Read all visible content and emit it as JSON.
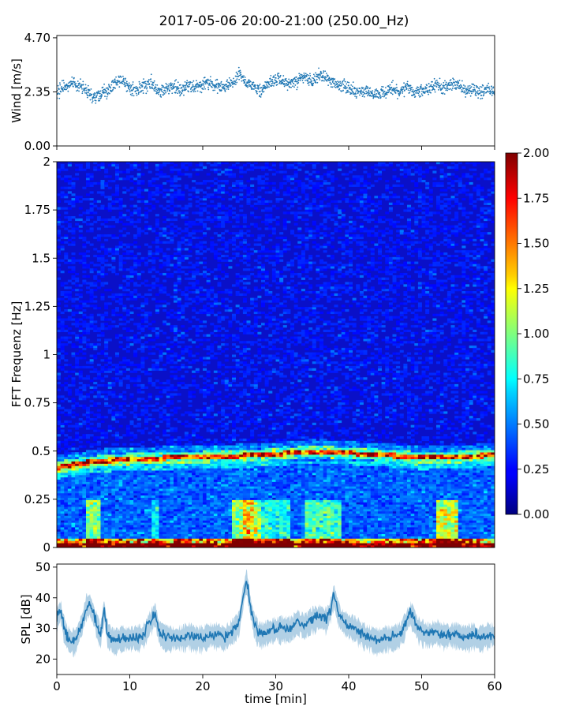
{
  "chart_data": [
    {
      "type": "scatter",
      "title": "2017-05-06 20:00-21:00 (250.00_Hz)",
      "ylabel": "Wind [m/s]",
      "xlim": [
        0,
        60
      ],
      "ylim": [
        0,
        4.8
      ],
      "y_ticks": [
        "0.00",
        "2.35",
        "4.70"
      ],
      "y_tick_values": [
        0,
        2.35,
        4.7
      ],
      "color": "#1f77b4",
      "series": [
        {
          "x": [
            0,
            1,
            2,
            3,
            4,
            5,
            6,
            7,
            8,
            9,
            10,
            11,
            12,
            13,
            14,
            15,
            16,
            17,
            18,
            19,
            20,
            21,
            22,
            23,
            24,
            25,
            26,
            27,
            28,
            29,
            30,
            31,
            32,
            33,
            34,
            35,
            36,
            37,
            38,
            39,
            40,
            41,
            42,
            43,
            44,
            45,
            46,
            47,
            48,
            49,
            50,
            51,
            52,
            53,
            54,
            55,
            56,
            57,
            58,
            59,
            60
          ],
          "y": [
            2.3,
            2.6,
            2.7,
            2.6,
            2.5,
            2.1,
            2.2,
            2.4,
            2.7,
            2.9,
            2.5,
            2.4,
            2.6,
            2.7,
            2.4,
            2.5,
            2.6,
            2.4,
            2.6,
            2.5,
            2.7,
            2.8,
            2.6,
            2.6,
            2.8,
            3.1,
            2.7,
            2.6,
            2.4,
            2.7,
            2.9,
            2.8,
            2.6,
            2.9,
            3.0,
            2.8,
            3.1,
            2.9,
            2.7,
            2.6,
            2.5,
            2.3,
            2.4,
            2.3,
            2.2,
            2.4,
            2.5,
            2.4,
            2.6,
            2.3,
            2.4,
            2.5,
            2.6,
            2.5,
            2.7,
            2.6,
            2.4,
            2.5,
            2.3,
            2.5,
            2.4
          ]
        }
      ]
    },
    {
      "type": "heatmap",
      "ylabel": "FFT Frequenz [Hz]",
      "xlim": [
        0,
        60
      ],
      "ylim": [
        0,
        2
      ],
      "y_ticks": [
        "0",
        "0.25",
        "0.5",
        "0.75",
        "1",
        "1.25",
        "1.5",
        "1.75",
        "2"
      ],
      "y_tick_values": [
        0,
        0.25,
        0.5,
        0.75,
        1,
        1.25,
        1.5,
        1.75,
        2
      ],
      "colormap": "jet",
      "colorbar_ticks": [
        "0.00",
        "0.25",
        "0.50",
        "0.75",
        "1.00",
        "1.25",
        "1.50",
        "1.75",
        "2.00"
      ],
      "colorbar_tick_values": [
        0,
        0.25,
        0.5,
        0.75,
        1.0,
        1.25,
        1.5,
        1.75,
        2.0
      ],
      "clim": [
        0,
        2
      ],
      "ridge": {
        "time": [
          0,
          3,
          6,
          10,
          15,
          20,
          25,
          30,
          35,
          40,
          45,
          50,
          55,
          60
        ],
        "frequency": [
          0.415,
          0.435,
          0.45,
          0.46,
          0.465,
          0.47,
          0.475,
          0.485,
          0.5,
          0.49,
          0.48,
          0.465,
          0.47,
          0.48
        ]
      }
    },
    {
      "type": "line",
      "ylabel": "SPL [dB]",
      "xlabel": "time [min]",
      "xlim": [
        0,
        60
      ],
      "ylim": [
        15,
        51
      ],
      "x_ticks": [
        "0",
        "10",
        "20",
        "30",
        "40",
        "50",
        "60"
      ],
      "x_tick_values": [
        0,
        10,
        20,
        30,
        40,
        50,
        60
      ],
      "y_ticks": [
        "20",
        "30",
        "40",
        "50"
      ],
      "y_tick_values": [
        20,
        30,
        40,
        50
      ],
      "color": "#1f77b4",
      "series": [
        {
          "x": [
            0,
            0.5,
            1,
            1.5,
            2,
            2.5,
            3,
            3.5,
            4,
            4.5,
            5,
            5.5,
            6,
            6.5,
            7,
            7.5,
            8,
            9,
            10,
            11,
            12,
            12.5,
            13,
            13.5,
            14,
            15,
            16,
            17,
            18,
            19,
            20,
            21,
            22,
            23,
            24,
            25,
            25.5,
            26,
            26.5,
            27,
            27.5,
            28,
            29,
            30,
            31,
            32,
            33,
            34,
            35,
            36,
            37,
            37.5,
            38,
            38.5,
            39,
            40,
            41,
            42,
            43,
            44,
            45,
            46,
            47,
            47.5,
            48,
            48.5,
            49,
            49.5,
            50,
            51,
            52,
            53,
            54,
            55,
            56,
            57,
            58,
            59,
            60
          ],
          "y": [
            33,
            36,
            30,
            27,
            26,
            26,
            29,
            32,
            37,
            38,
            35,
            31,
            28,
            36,
            28,
            27,
            26,
            27,
            27,
            27,
            28,
            31,
            33,
            35,
            29,
            27,
            27,
            27,
            28,
            27,
            27,
            28,
            28,
            27,
            29,
            32,
            40,
            46,
            38,
            32,
            29,
            28,
            29,
            30,
            30,
            30,
            32,
            31,
            33,
            34,
            33,
            36,
            41,
            36,
            33,
            31,
            30,
            28,
            27,
            26,
            27,
            27,
            28,
            30,
            33,
            35,
            33,
            30,
            29,
            28,
            29,
            28,
            28,
            28,
            27,
            28,
            27,
            28,
            28
          ]
        }
      ]
    }
  ]
}
